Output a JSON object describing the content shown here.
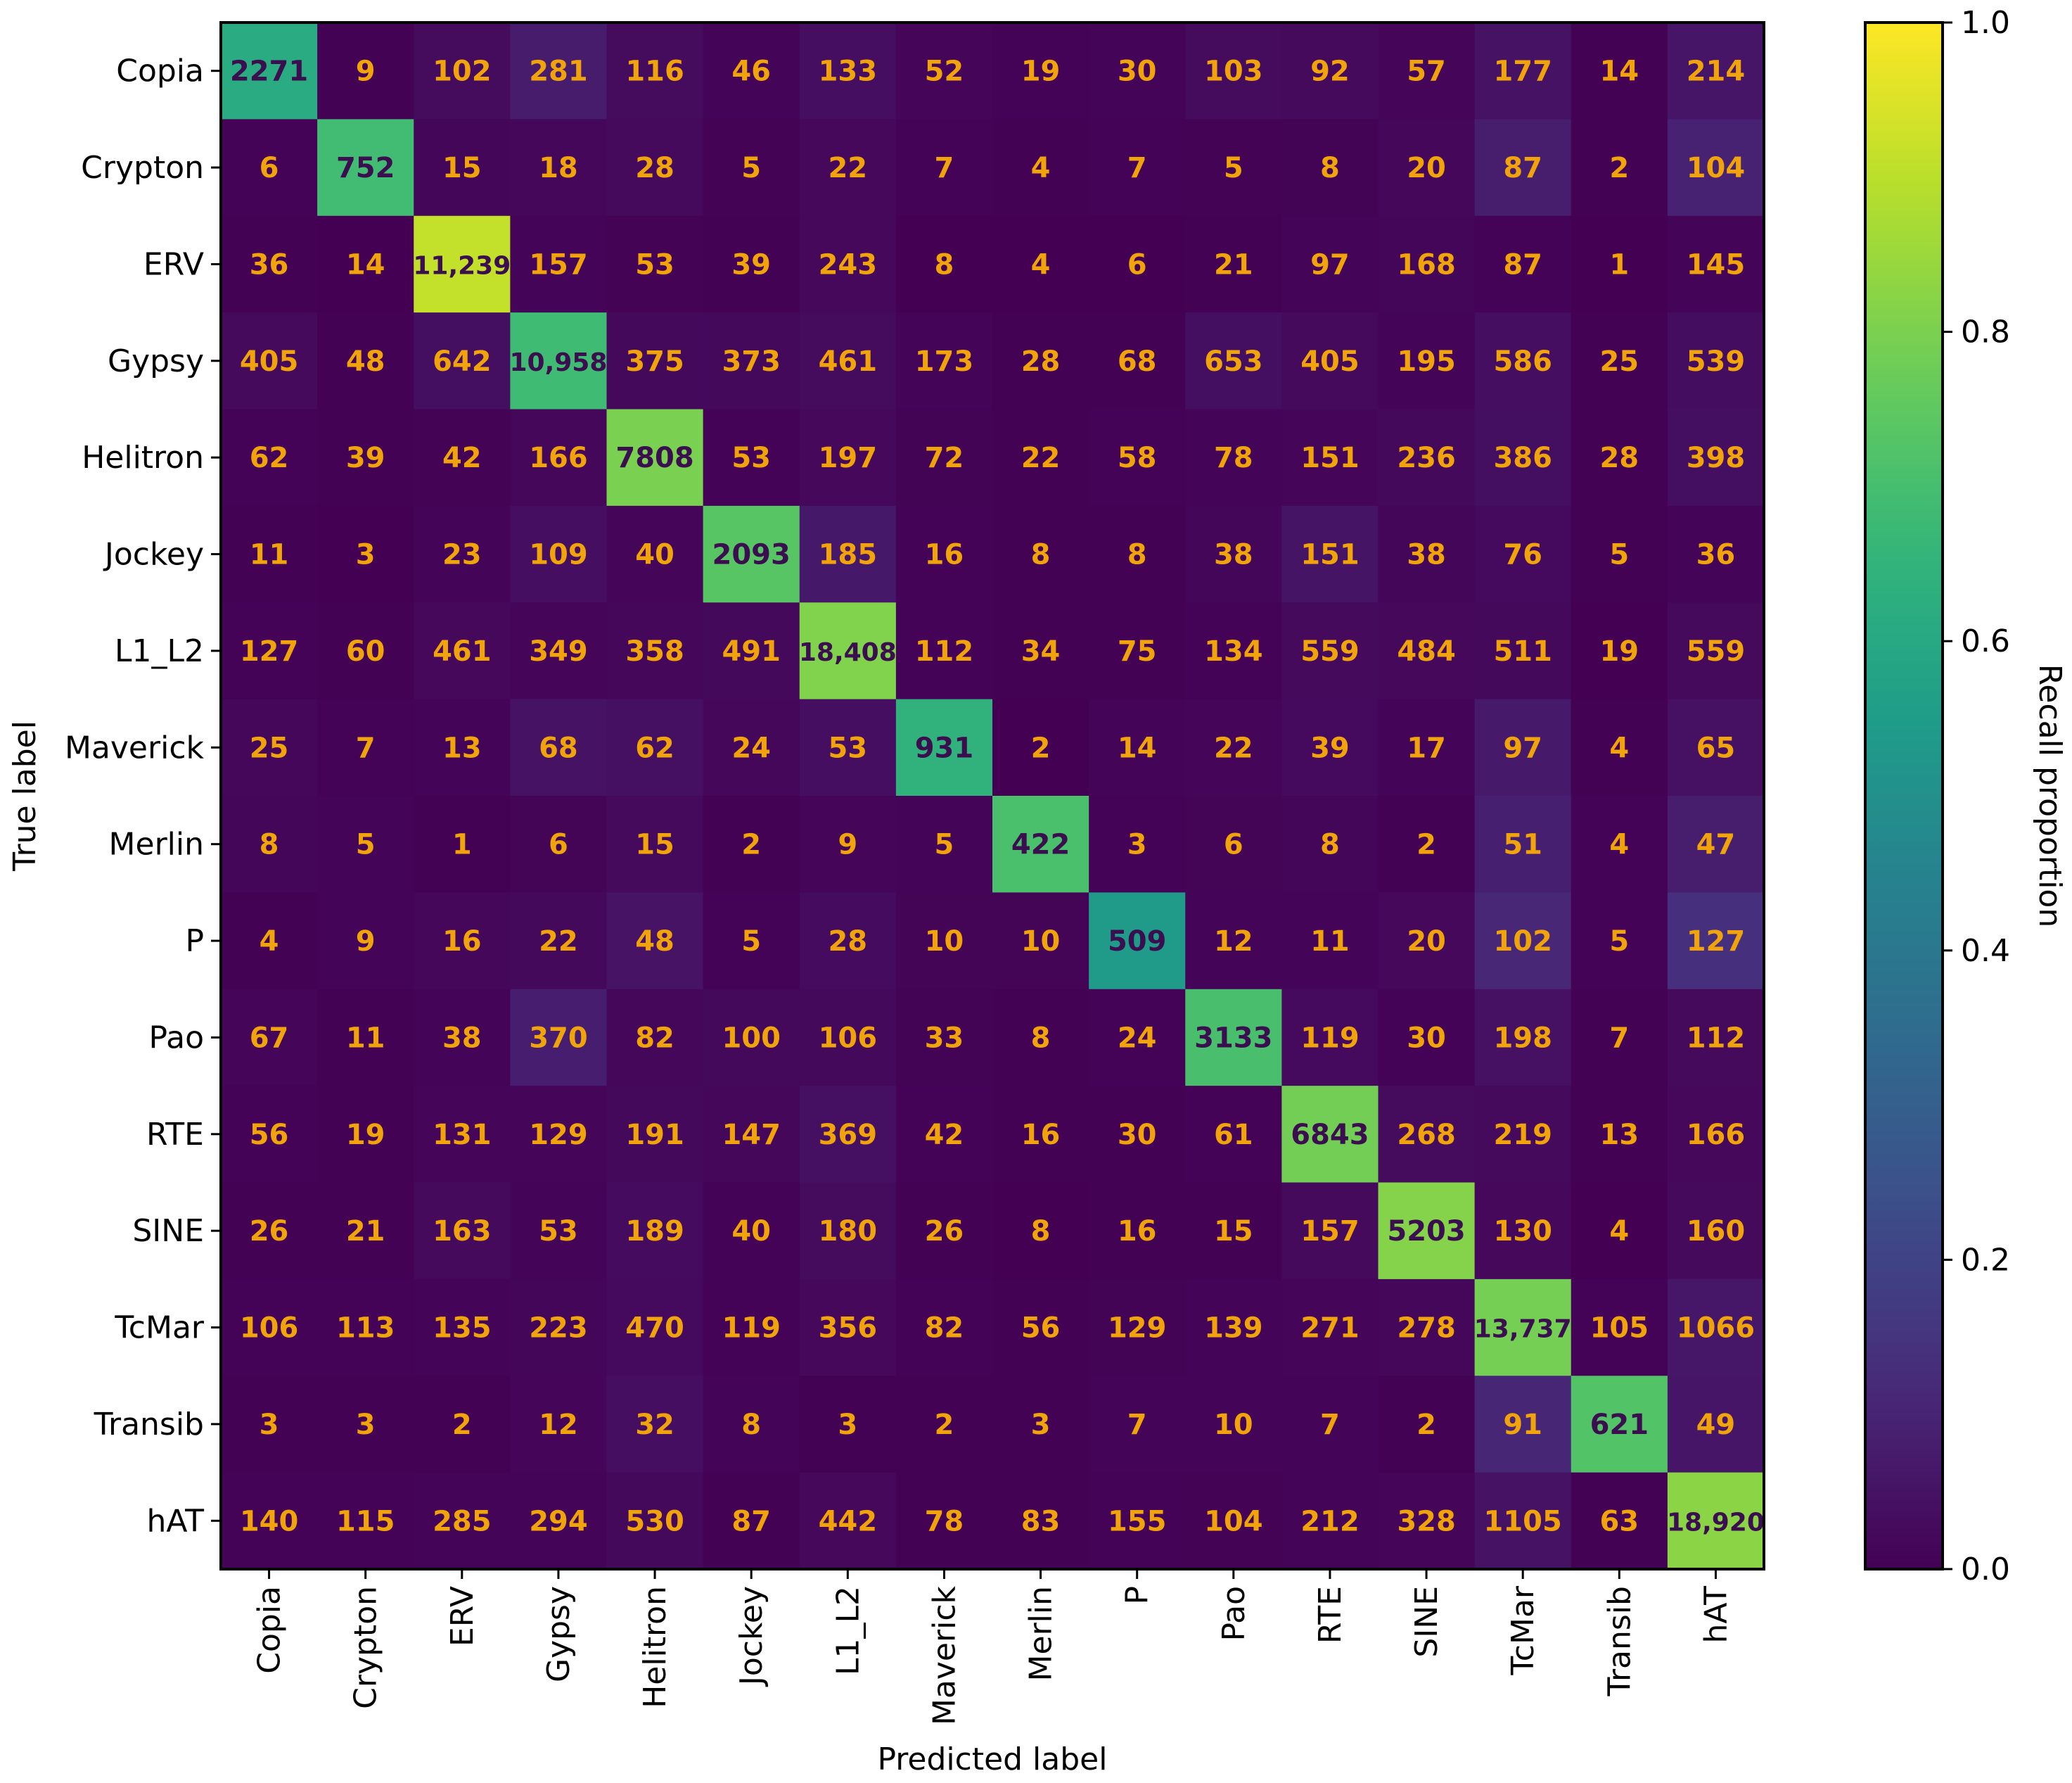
{
  "chart_data": {
    "type": "heatmap",
    "title": "",
    "xlabel": "Predicted label",
    "ylabel": "True label",
    "colorbar_label": "Recall proportion",
    "colormap": "viridis",
    "color_range": [
      0,
      1
    ],
    "colorbar_ticks": [
      "0.0",
      "0.2",
      "0.4",
      "0.6",
      "0.8",
      "1.0"
    ],
    "text_color_low": "#f0a30a",
    "text_color_high": "#3b0f4f",
    "labels": [
      "Copia",
      "Crypton",
      "ERV",
      "Gypsy",
      "Helitron",
      "Jockey",
      "L1_L2",
      "Maverick",
      "Merlin",
      "P",
      "Pao",
      "RTE",
      "SINE",
      "TcMar",
      "Transib",
      "hAT"
    ],
    "display": [
      [
        "2271",
        "9",
        "102",
        "281",
        "116",
        "46",
        "133",
        "52",
        "19",
        "30",
        "103",
        "92",
        "57",
        "177",
        "14",
        "214"
      ],
      [
        "6",
        "752",
        "15",
        "18",
        "28",
        "5",
        "22",
        "7",
        "4",
        "7",
        "5",
        "8",
        "20",
        "87",
        "2",
        "104"
      ],
      [
        "36",
        "14",
        "11,239",
        "157",
        "53",
        "39",
        "243",
        "8",
        "4",
        "6",
        "21",
        "97",
        "168",
        "87",
        "1",
        "145"
      ],
      [
        "405",
        "48",
        "642",
        "10,958",
        "375",
        "373",
        "461",
        "173",
        "28",
        "68",
        "653",
        "405",
        "195",
        "586",
        "25",
        "539"
      ],
      [
        "62",
        "39",
        "42",
        "166",
        "7808",
        "53",
        "197",
        "72",
        "22",
        "58",
        "78",
        "151",
        "236",
        "386",
        "28",
        "398"
      ],
      [
        "11",
        "3",
        "23",
        "109",
        "40",
        "2093",
        "185",
        "16",
        "8",
        "8",
        "38",
        "151",
        "38",
        "76",
        "5",
        "36"
      ],
      [
        "127",
        "60",
        "461",
        "349",
        "358",
        "491",
        "18,408",
        "112",
        "34",
        "75",
        "134",
        "559",
        "484",
        "511",
        "19",
        "559"
      ],
      [
        "25",
        "7",
        "13",
        "68",
        "62",
        "24",
        "53",
        "931",
        "2",
        "14",
        "22",
        "39",
        "17",
        "97",
        "4",
        "65"
      ],
      [
        "8",
        "5",
        "1",
        "6",
        "15",
        "2",
        "9",
        "5",
        "422",
        "3",
        "6",
        "8",
        "2",
        "51",
        "4",
        "47"
      ],
      [
        "4",
        "9",
        "16",
        "22",
        "48",
        "5",
        "28",
        "10",
        "10",
        "509",
        "12",
        "11",
        "20",
        "102",
        "5",
        "127"
      ],
      [
        "67",
        "11",
        "38",
        "370",
        "82",
        "100",
        "106",
        "33",
        "8",
        "24",
        "3133",
        "119",
        "30",
        "198",
        "7",
        "112"
      ],
      [
        "56",
        "19",
        "131",
        "129",
        "191",
        "147",
        "369",
        "42",
        "16",
        "30",
        "61",
        "6843",
        "268",
        "219",
        "13",
        "166"
      ],
      [
        "26",
        "21",
        "163",
        "53",
        "189",
        "40",
        "180",
        "26",
        "8",
        "16",
        "15",
        "157",
        "5203",
        "130",
        "4",
        "160"
      ],
      [
        "106",
        "113",
        "135",
        "223",
        "470",
        "119",
        "356",
        "82",
        "56",
        "129",
        "139",
        "271",
        "278",
        "13,737",
        "105",
        "1066"
      ],
      [
        "3",
        "3",
        "2",
        "12",
        "32",
        "8",
        "3",
        "2",
        "3",
        "7",
        "10",
        "7",
        "2",
        "91",
        "621",
        "49"
      ],
      [
        "140",
        "115",
        "285",
        "294",
        "530",
        "87",
        "442",
        "78",
        "83",
        "155",
        "104",
        "212",
        "328",
        "1105",
        "63",
        "18,920"
      ]
    ]
  }
}
